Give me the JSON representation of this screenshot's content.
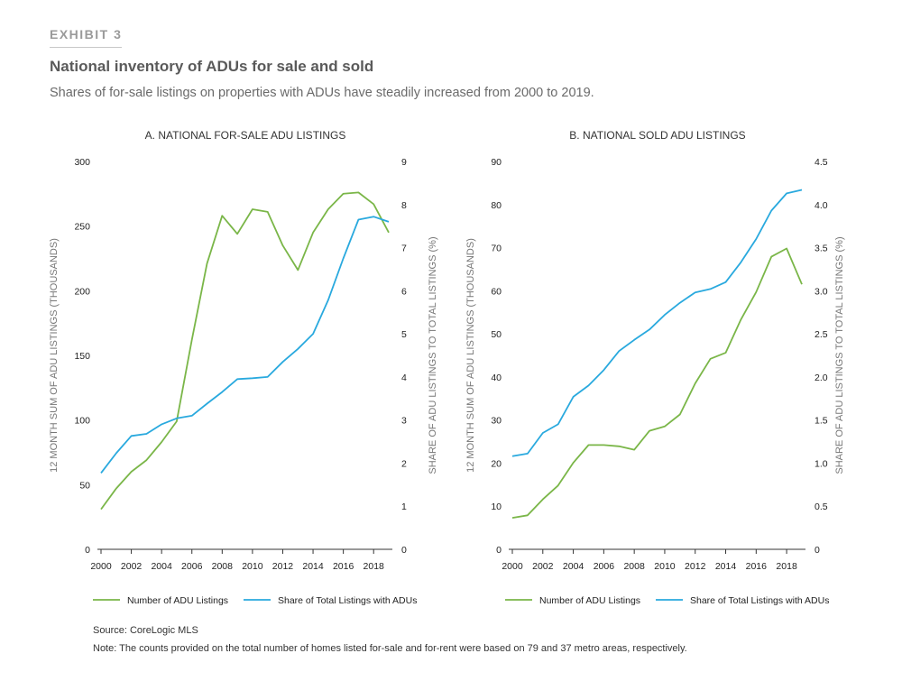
{
  "header": {
    "exhibit": "EXHIBIT 3",
    "title": "National inventory of ADUs for sale and sold",
    "subtitle": "Shares of for-sale listings on properties with ADUs have steadily increased from 2000 to 2019."
  },
  "colors": {
    "green": "#7ab648",
    "blue": "#29a9de",
    "axis": "#333333"
  },
  "chart_data": [
    {
      "type": "line",
      "title": "A. NATIONAL FOR-SALE ADU LISTINGS",
      "xlabel": "",
      "ylabel": "12 MONTH SUM OF ADU LISTINGS (THOUSANDS)",
      "y2label": "SHARE OF ADU LISTINGS TO TOTAL LISTINGS (%)",
      "xlim": [
        2000,
        2019
      ],
      "ylim": [
        0,
        300
      ],
      "y2lim": [
        0,
        9
      ],
      "xticks": [
        2000,
        2002,
        2004,
        2006,
        2008,
        2010,
        2012,
        2014,
        2016,
        2018
      ],
      "xtick_labels": [
        "2000",
        "2002",
        "2004",
        "2006",
        "2008",
        "2010",
        "2012",
        "2014",
        "2016",
        "2018"
      ],
      "yticks": [
        0,
        50,
        100,
        150,
        200,
        250,
        300
      ],
      "ytick_labels": [
        "0",
        "50",
        "100",
        "150",
        "200",
        "250",
        "300"
      ],
      "y2ticks": [
        0,
        1,
        2,
        3,
        4,
        5,
        6,
        7,
        8,
        9
      ],
      "y2tick_labels": [
        "0",
        "1",
        "2",
        "3",
        "4",
        "5",
        "6",
        "7",
        "8",
        "9"
      ],
      "x": [
        2000,
        2001,
        2002,
        2003,
        2004,
        2005,
        2006,
        2007,
        2008,
        2009,
        2010,
        2011,
        2012,
        2013,
        2014,
        2015,
        2016,
        2017,
        2018,
        2019
      ],
      "series": [
        {
          "name": "Number of ADU Listings",
          "axis": "left",
          "color": "#7ab648",
          "values": [
            31,
            47,
            60,
            69,
            83,
            99,
            162,
            221,
            258,
            244,
            263,
            261,
            235,
            216,
            245,
            263,
            275,
            276,
            267,
            245
          ]
        },
        {
          "name": "Share of Total Listings with ADUs",
          "axis": "right",
          "color": "#29a9de",
          "values": [
            1.77,
            2.23,
            2.63,
            2.68,
            2.9,
            3.04,
            3.1,
            3.38,
            3.65,
            3.95,
            3.97,
            4.0,
            4.35,
            4.65,
            5.0,
            5.78,
            6.75,
            7.65,
            7.72,
            7.6
          ]
        }
      ],
      "legend": [
        "Number of ADU Listings",
        "Share of Total Listings with ADUs"
      ],
      "legend_position": "bottom"
    },
    {
      "type": "line",
      "title": "B. NATIONAL SOLD ADU LISTINGS",
      "xlabel": "",
      "ylabel": "12 MONTH SUM OF ADU LISTINGS (THOUSANDS)",
      "y2label": "SHARE OF ADU LISTINGS TO TOTAL LISTINGS (%)",
      "xlim": [
        2000,
        2019
      ],
      "ylim": [
        0,
        90
      ],
      "y2lim": [
        0,
        4.5
      ],
      "xticks": [
        2000,
        2002,
        2004,
        2006,
        2008,
        2010,
        2012,
        2014,
        2016,
        2018
      ],
      "xtick_labels": [
        "2000",
        "2002",
        "2004",
        "2006",
        "2008",
        "2010",
        "2012",
        "2014",
        "2016",
        "2018"
      ],
      "yticks": [
        0,
        10,
        20,
        30,
        40,
        50,
        60,
        70,
        80,
        90
      ],
      "ytick_labels": [
        "0",
        "10",
        "20",
        "30",
        "40",
        "50",
        "60",
        "70",
        "80",
        "90"
      ],
      "y2ticks": [
        0,
        0.5,
        1.0,
        1.5,
        2.0,
        2.5,
        3.0,
        3.5,
        4.0,
        4.5
      ],
      "y2tick_labels": [
        "0",
        "0.5",
        "1.0",
        "1.5",
        "2.0",
        "2.5",
        "3.0",
        "3.5",
        "4.0",
        "4.5"
      ],
      "x": [
        2000,
        2001,
        2002,
        2003,
        2004,
        2005,
        2006,
        2007,
        2008,
        2009,
        2010,
        2011,
        2012,
        2013,
        2014,
        2015,
        2016,
        2017,
        2018,
        2019
      ],
      "series": [
        {
          "name": "Number of ADU Listings",
          "axis": "left",
          "color": "#7ab648",
          "values": [
            7.3,
            7.9,
            11.6,
            14.8,
            20.1,
            24.2,
            24.2,
            23.9,
            23.1,
            27.5,
            28.5,
            31.3,
            38.5,
            44.2,
            45.6,
            53.3,
            59.7,
            67.9,
            69.8,
            61.5
          ]
        },
        {
          "name": "Share of Total Listings with ADUs",
          "axis": "right",
          "color": "#29a9de",
          "values": [
            1.08,
            1.11,
            1.35,
            1.45,
            1.77,
            1.9,
            2.08,
            2.3,
            2.43,
            2.55,
            2.72,
            2.86,
            2.98,
            3.02,
            3.1,
            3.33,
            3.6,
            3.93,
            4.13,
            4.17
          ]
        }
      ],
      "legend": [
        "Number of ADU Listings",
        "Share of Total Listings with ADUs"
      ],
      "legend_position": "bottom"
    }
  ],
  "footer": {
    "source": "Source: CoreLogic MLS",
    "note": "Note: The counts provided on the total number of homes listed for-sale and for-rent were based on 79 and 37 metro areas, respectively."
  }
}
